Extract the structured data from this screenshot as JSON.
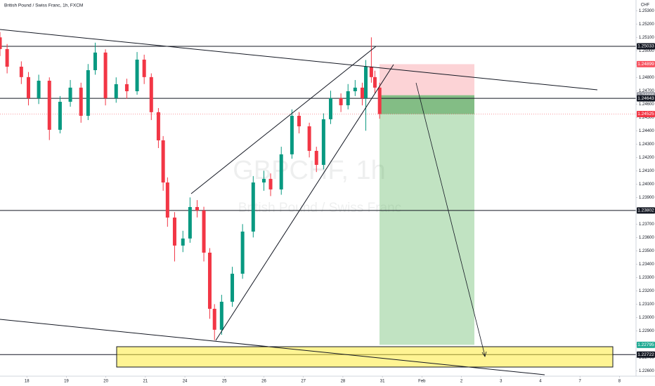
{
  "chart_data": {
    "type": "candlestick",
    "title": "British Pound / Swiss Franc, 1h, FXCM",
    "watermark_symbol": "GBPCHF, 1h",
    "watermark_name": "British Pound / Swiss Franc",
    "currency": "CHF",
    "up_color": "#089981",
    "down_color": "#f23645",
    "x": [
      -0.68,
      -0.5,
      -0.14,
      0.04,
      0.3,
      0.57,
      0.84,
      1.1,
      1.37,
      1.55,
      1.73,
      1.99,
      2.26,
      2.53,
      2.79,
      2.97,
      3.15,
      3.33,
      3.45,
      3.56,
      3.74,
      3.95,
      4.13,
      4.31,
      4.48,
      4.63,
      4.75,
      4.93,
      5.2,
      5.46,
      5.73,
      6.0,
      6.17,
      6.44,
      6.71,
      6.89,
      7.15,
      7.33,
      7.51,
      7.69,
      7.95,
      8.13,
      8.31,
      8.49,
      8.58,
      8.72,
      8.81,
      8.93
    ],
    "open": [
      1.251,
      1.25012,
      1.2488,
      1.24802,
      1.24644,
      1.24775,
      1.24407,
      1.24617,
      1.24723,
      1.24512,
      1.24854,
      1.24986,
      1.24644,
      1.24749,
      1.24696,
      1.24933,
      1.24802,
      1.24539,
      1.24328,
      1.24012,
      1.23749,
      1.23539,
      1.23592,
      1.23828,
      1.23802,
      1.23486,
      1.23065,
      1.22908,
      1.23118,
      1.23328,
      1.23644,
      1.24012,
      1.24039,
      1.2396,
      1.24223,
      1.24512,
      1.24433,
      1.24249,
      1.24144,
      1.24486,
      1.24644,
      1.24591,
      1.24696,
      1.24723,
      1.24644,
      1.2488,
      1.24802,
      1.24723
    ],
    "high": [
      1.2514,
      1.2505,
      1.2492,
      1.2484,
      1.2482,
      1.248,
      1.2466,
      1.2478,
      1.2476,
      1.249,
      1.2506,
      1.2501,
      1.248,
      1.2479,
      1.2499,
      1.2497,
      1.2483,
      1.2457,
      1.2436,
      1.2405,
      1.2379,
      1.2365,
      1.239,
      1.2388,
      1.2383,
      1.2352,
      1.231,
      1.2317,
      1.2338,
      1.237,
      1.2406,
      1.241,
      1.2408,
      1.2428,
      1.2456,
      1.2454,
      1.2446,
      1.2428,
      1.2453,
      1.247,
      1.2468,
      1.2475,
      1.2478,
      1.2476,
      1.2493,
      1.251,
      1.2485,
      1.2476
    ],
    "low": [
      1.2496,
      1.2483,
      1.2475,
      1.2459,
      1.246,
      1.2433,
      1.2438,
      1.2458,
      1.2446,
      1.2448,
      1.2482,
      1.2459,
      1.2461,
      1.2464,
      1.2467,
      1.2475,
      1.2448,
      1.2427,
      1.2395,
      1.2368,
      1.2342,
      1.2349,
      1.2356,
      1.2375,
      1.2342,
      1.2299,
      1.2283,
      1.2287,
      1.2308,
      1.2329,
      1.236,
      1.2395,
      1.2391,
      1.2392,
      1.2419,
      1.2438,
      1.242,
      1.2409,
      1.2411,
      1.2445,
      1.2454,
      1.2456,
      1.2466,
      1.2459,
      1.244,
      1.2476,
      1.2468,
      1.2449
    ],
    "close": [
      1.25012,
      1.2488,
      1.24802,
      1.24644,
      1.24775,
      1.24407,
      1.24617,
      1.24723,
      1.24512,
      1.24854,
      1.24986,
      1.24644,
      1.24749,
      1.24696,
      1.24933,
      1.24802,
      1.24539,
      1.24328,
      1.24012,
      1.23749,
      1.23539,
      1.23592,
      1.23828,
      1.23802,
      1.23486,
      1.23065,
      1.22908,
      1.23118,
      1.23328,
      1.23644,
      1.24012,
      1.24039,
      1.2396,
      1.24223,
      1.24512,
      1.24433,
      1.24249,
      1.24144,
      1.24486,
      1.24644,
      1.24591,
      1.24696,
      1.24723,
      1.24644,
      1.2488,
      1.24802,
      1.24723,
      1.24525
    ],
    "ylim": [
      1.2256,
      1.2538
    ],
    "yticks": [
      {
        "value": 1.253,
        "label": "1.25300"
      },
      {
        "value": 1.252,
        "label": "1.25200"
      },
      {
        "value": 1.251,
        "label": "1.25100"
      },
      {
        "value": 1.25,
        "label": "1.25000"
      },
      {
        "value": 1.249,
        "label": "1.24900"
      },
      {
        "value": 1.248,
        "label": "1.24800"
      },
      {
        "value": 1.247,
        "label": "1.24700"
      },
      {
        "value": 1.246,
        "label": "1.24600"
      },
      {
        "value": 1.245,
        "label": "1.24500"
      },
      {
        "value": 1.244,
        "label": "1.24400"
      },
      {
        "value": 1.243,
        "label": "1.24300"
      },
      {
        "value": 1.242,
        "label": "1.24200"
      },
      {
        "value": 1.241,
        "label": "1.24100"
      },
      {
        "value": 1.24,
        "label": "1.24000"
      },
      {
        "value": 1.239,
        "label": "1.23900"
      },
      {
        "value": 1.238,
        "label": "1.23800"
      },
      {
        "value": 1.237,
        "label": "1.23700"
      },
      {
        "value": 1.236,
        "label": "1.23600"
      },
      {
        "value": 1.235,
        "label": "1.23500"
      },
      {
        "value": 1.234,
        "label": "1.23400"
      },
      {
        "value": 1.233,
        "label": "1.23300"
      },
      {
        "value": 1.232,
        "label": "1.23200"
      },
      {
        "value": 1.231,
        "label": "1.23100"
      },
      {
        "value": 1.23,
        "label": "1.23000"
      },
      {
        "value": 1.229,
        "label": "1.22900"
      },
      {
        "value": 1.228,
        "label": "1.22800"
      },
      {
        "value": 1.227,
        "label": "1.22700"
      },
      {
        "value": 1.226,
        "label": "1.22600"
      }
    ],
    "xlim": [
      -0.68,
      15.42
    ],
    "xticks": [
      {
        "value": 0,
        "label": "18"
      },
      {
        "value": 1,
        "label": "19"
      },
      {
        "value": 2,
        "label": "20"
      },
      {
        "value": 3,
        "label": "21"
      },
      {
        "value": 4,
        "label": "24"
      },
      {
        "value": 5,
        "label": "25"
      },
      {
        "value": 6,
        "label": "26"
      },
      {
        "value": 7,
        "label": "27"
      },
      {
        "value": 8,
        "label": "28"
      },
      {
        "value": 9,
        "label": "31"
      },
      {
        "value": 10,
        "label": "Feb"
      },
      {
        "value": 11,
        "label": "2"
      },
      {
        "value": 12,
        "label": "3"
      },
      {
        "value": 13,
        "label": "4"
      },
      {
        "value": 14,
        "label": "7"
      },
      {
        "value": 15,
        "label": "8"
      }
    ],
    "levels": [
      1.25033,
      1.24643,
      1.23802,
      1.22722
    ],
    "position": {
      "stop": 1.24899,
      "entry": 1.24666,
      "target": 1.22795
    },
    "last_price": 1.24525
  }
}
